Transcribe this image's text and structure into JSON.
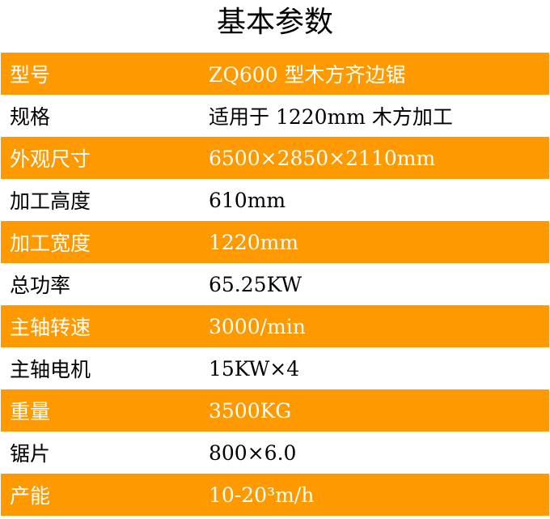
{
  "title": "基本参数",
  "rows": [
    {
      "label": "型号",
      "value": "ZQ600 型木方齐边锯"
    },
    {
      "label": "规格",
      "value": "适用于 1220mm 木方加工"
    },
    {
      "label": "外观尺寸",
      "value": "6500×2850×2110mm"
    },
    {
      "label": "加工高度",
      "value": "610mm"
    },
    {
      "label": "加工宽度",
      "value": "1220mm"
    },
    {
      "label": "总功率",
      "value": "65.25KW"
    },
    {
      "label": "主轴转速",
      "value": "3000/min"
    },
    {
      "label": "主轴电机",
      "value": "15KW×4"
    },
    {
      "label": "重量",
      "value": "3500KG"
    },
    {
      "label": "锯片",
      "value": "800×6.0"
    },
    {
      "label": "产能",
      "value": "10-20³m/h"
    }
  ],
  "colors": {
    "accent": "#fe9900",
    "alt_text": "#ffffff"
  }
}
